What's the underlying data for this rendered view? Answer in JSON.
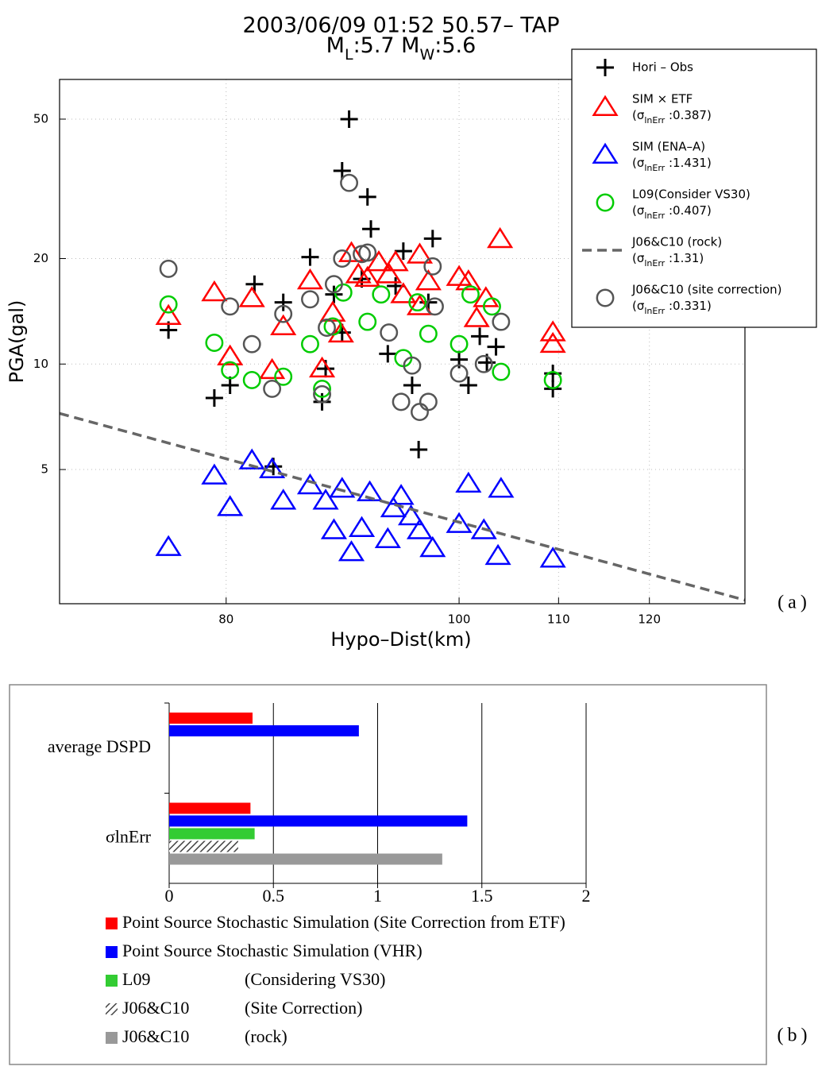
{
  "chart_data": [
    {
      "type": "scatter",
      "title": "2003/06/09 01:52 50.57– TAP",
      "subtitle_parts": [
        {
          "text": "M"
        },
        {
          "text": "L",
          "sub": true
        },
        {
          "text": ":5.7  M"
        },
        {
          "text": "W",
          "sub": true
        },
        {
          "text": ":5.6"
        }
      ],
      "x_label": "Hypo–Dist(km)",
      "y_label": "PGA(gal)",
      "panel_label": "(a)",
      "xlog": true,
      "ylog": true,
      "grid": true,
      "xlim": [
        68.2,
        131.5
      ],
      "xticks": [
        80,
        100,
        110,
        120
      ],
      "ylim": [
        2.07,
        64.9
      ],
      "yticks": [
        5,
        10,
        20,
        50
      ],
      "series": [
        {
          "name": "Hori – Obs",
          "marker": "plus",
          "color": "#000000",
          "x": [
            75.7,
            79.1,
            80.3,
            82.2,
            83.7,
            84.5,
            86.7,
            87.7,
            88.0,
            88.7,
            89.4,
            90.0,
            89.4,
            91.6,
            91.9,
            91.1,
            93.4,
            94.1,
            94.8,
            95.6,
            96.2,
            97.1,
            97.5,
            100,
            100.9,
            102.0,
            102.7,
            103.6,
            109.4,
            109.4
          ],
          "values": [
            12.5,
            8.0,
            8.7,
            16.9,
            5.1,
            15.0,
            20.2,
            7.8,
            9.7,
            15.8,
            12.3,
            50,
            35.6,
            30.0,
            24.3,
            17.5,
            10.7,
            16.7,
            21,
            8.7,
            5.7,
            15.0,
            22.8,
            10.3,
            8.7,
            12.0,
            10.1,
            11.2,
            8.5,
            9.4
          ]
        },
        {
          "name": "SIM × ETF",
          "sigma_text": [
            "(σ",
            "lnErr",
            " :0.387)"
          ],
          "marker": "triangle",
          "color": "#ff0000",
          "x": [
            75.7,
            79.1,
            80.3,
            82.0,
            83.6,
            84.5,
            86.7,
            87.7,
            88.6,
            89.3,
            90.2,
            90.8,
            91.6,
            92.6,
            93.5,
            94.1,
            94.8,
            96.3,
            97.1,
            96.3,
            100,
            100.9,
            101.7,
            102.6,
            104.0,
            109.4,
            109.4
          ],
          "values": [
            13.7,
            16.0,
            10.5,
            15.4,
            9.6,
            12.8,
            17.3,
            9.7,
            14.0,
            12.2,
            20.7,
            18.0,
            17.6,
            19.5,
            18.0,
            19.5,
            15.8,
            20.5,
            17.2,
            14.6,
            17.7,
            17.2,
            13.5,
            15.4,
            22.7,
            12.3,
            11.4
          ]
        },
        {
          "name": "SIM (ENA–A)",
          "sigma_text": [
            "(σ",
            "lnErr",
            " :1.431)"
          ],
          "marker": "triangle",
          "color": "#0000ff",
          "x": [
            75.7,
            79.1,
            80.3,
            82.0,
            83.6,
            84.5,
            86.7,
            88.0,
            88.7,
            89.4,
            90.2,
            91.1,
            91.8,
            93.4,
            93.9,
            94.6,
            95.5,
            96.3,
            97.5,
            100,
            100.9,
            102.4,
            103.8,
            104.1,
            109.4
          ],
          "values": [
            3.0,
            4.8,
            3.9,
            5.3,
            5.0,
            4.07,
            4.5,
            4.07,
            3.35,
            4.4,
            2.9,
            3.4,
            4.3,
            3.16,
            3.87,
            4.2,
            3.67,
            3.35,
            2.98,
            3.49,
            4.55,
            3.35,
            2.83,
            4.4,
            2.78
          ]
        },
        {
          "name": "L09(Consider VS30)",
          "sigma_text": [
            "(σ",
            "lnErr",
            " :0.407)"
          ],
          "marker": "circle",
          "color": "#00cc00",
          "x": [
            75.7,
            79.1,
            80.3,
            82.0,
            84.5,
            86.7,
            87.7,
            88.6,
            89.5,
            91.6,
            92.8,
            94.8,
            96.1,
            97.1,
            100,
            101.1,
            103.2,
            104.1,
            109.4
          ],
          "values": [
            14.8,
            11.5,
            9.6,
            9.0,
            9.2,
            11.4,
            8.5,
            12.8,
            16.0,
            13.2,
            15.8,
            10.4,
            15.0,
            12.2,
            11.4,
            15.8,
            14.6,
            9.5,
            9.0
          ]
        },
        {
          "name": "J06&C10 (rock)",
          "sigma_text": [
            "(σ",
            "lnErr",
            " :1.31)"
          ],
          "marker": "line",
          "dashed": true,
          "color": "#666666",
          "x": [
            68.2,
            131.5
          ],
          "values": [
            7.23,
            2.12
          ]
        },
        {
          "name": "J06&C10 (site correction)",
          "sigma_text": [
            "(σ",
            "lnErr",
            " :0.331)"
          ],
          "marker": "circle",
          "color": "#555555",
          "x": [
            75.7,
            80.3,
            82.0,
            83.6,
            84.5,
            86.7,
            87.7,
            88.1,
            88.7,
            89.4,
            90.0,
            91.1,
            91.6,
            93.5,
            94.6,
            95.6,
            96.3,
            97.1,
            97.5,
            97.7,
            100,
            102.4,
            104.1
          ],
          "values": [
            18.7,
            14.6,
            11.4,
            8.5,
            13.9,
            15.3,
            8.2,
            12.7,
            16.9,
            20,
            32.9,
            20.6,
            20.8,
            12.3,
            7.8,
            9.9,
            7.3,
            7.8,
            19.0,
            14.6,
            9.4,
            10.0,
            13.2
          ]
        }
      ]
    },
    {
      "type": "bar",
      "orientation": "horizontal",
      "panel_label": "(b)",
      "grid": true,
      "categories": [
        "average DSPD",
        "σlnErr"
      ],
      "xlim": [
        0,
        2
      ],
      "xticks": [
        0,
        0.5,
        1,
        1.5,
        2
      ],
      "series": [
        {
          "name": "Point Source Stochastic Simulation (Site Correction from ETF)",
          "color": "#ff0000",
          "values": [
            0.4,
            0.39
          ]
        },
        {
          "name": "Point Source Stochastic Simulation (VHR)",
          "color": "#0000ff",
          "values": [
            0.91,
            1.43
          ]
        },
        {
          "name": "L09",
          "detail": "(Considering VS30)",
          "color": "#33cc33",
          "values": [
            null,
            0.41
          ]
        },
        {
          "name": "J06&C10",
          "detail": "(Site Correction)",
          "color": "#444444",
          "hatch": true,
          "values": [
            null,
            0.331
          ]
        },
        {
          "name": "J06&C10",
          "detail": "(rock)",
          "color": "#999999",
          "values": [
            null,
            1.31
          ]
        }
      ]
    }
  ]
}
